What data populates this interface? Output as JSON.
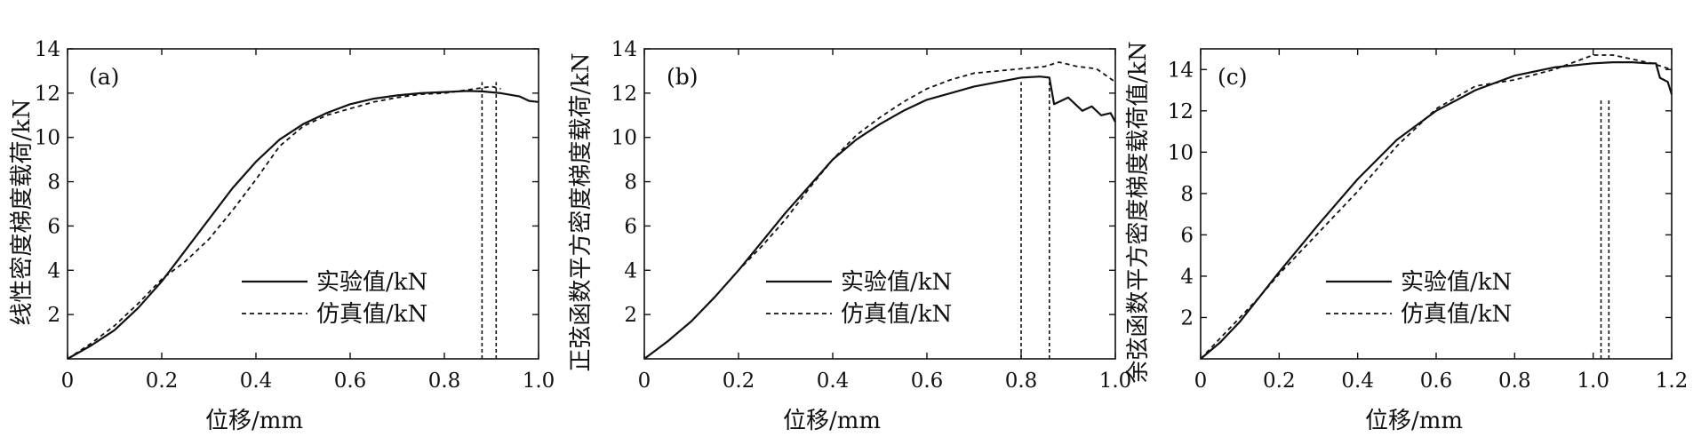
{
  "chart_data": [
    {
      "type": "line",
      "panel_label": "(a)",
      "xlabel": "位移/mm",
      "ylabel": "线性密度梯度载荷/kN",
      "xlim": [
        0,
        1.0
      ],
      "ylim": [
        0,
        14
      ],
      "xticks": [
        0,
        0.2,
        0.4,
        0.6,
        0.8,
        1.0
      ],
      "xtick_labels": [
        "0",
        "0.2",
        "0.4",
        "0.6",
        "0.8",
        "1.0"
      ],
      "yticks": [
        2,
        4,
        6,
        8,
        10,
        12,
        14
      ],
      "ytick_labels": [
        "2",
        "4",
        "6",
        "8",
        "10",
        "12",
        "14"
      ],
      "grid": false,
      "legend_position": "lower-right",
      "series": [
        {
          "name": "实验值/kN",
          "style": "solid",
          "x": [
            0,
            0.05,
            0.1,
            0.15,
            0.2,
            0.25,
            0.3,
            0.35,
            0.4,
            0.45,
            0.5,
            0.55,
            0.6,
            0.65,
            0.7,
            0.75,
            0.8,
            0.85,
            0.88,
            0.92,
            0.96,
            0.98,
            1.0
          ],
          "y": [
            0,
            0.6,
            1.3,
            2.3,
            3.5,
            4.9,
            6.3,
            7.7,
            8.9,
            9.9,
            10.6,
            11.1,
            11.5,
            11.75,
            11.9,
            12.0,
            12.05,
            12.1,
            12.08,
            12.0,
            11.85,
            11.65,
            11.6
          ]
        },
        {
          "name": "仿真值/kN",
          "style": "dashed",
          "x": [
            0,
            0.05,
            0.1,
            0.15,
            0.2,
            0.25,
            0.3,
            0.35,
            0.4,
            0.45,
            0.5,
            0.55,
            0.6,
            0.65,
            0.7,
            0.75,
            0.8,
            0.85,
            0.9,
            0.92
          ],
          "y": [
            0,
            0.7,
            1.5,
            2.5,
            3.6,
            4.4,
            5.4,
            6.7,
            8.1,
            9.6,
            10.5,
            11.0,
            11.3,
            11.6,
            11.8,
            11.95,
            12.0,
            12.15,
            12.3,
            12.2
          ]
        }
      ],
      "vertical_markers": [
        0.88,
        0.91
      ]
    },
    {
      "type": "line",
      "panel_label": "(b)",
      "xlabel": "位移/mm",
      "ylabel": "正弦函数平方密度梯度载荷/kN",
      "xlim": [
        0,
        1.0
      ],
      "ylim": [
        0,
        14
      ],
      "xticks": [
        0,
        0.2,
        0.4,
        0.6,
        0.8,
        1.0
      ],
      "xtick_labels": [
        "0",
        "0.2",
        "0.4",
        "0.6",
        "0.8",
        "1.0"
      ],
      "yticks": [
        2,
        4,
        6,
        8,
        10,
        12,
        14
      ],
      "ytick_labels": [
        "2",
        "4",
        "6",
        "8",
        "10",
        "12",
        "14"
      ],
      "grid": false,
      "legend_position": "lower-right",
      "series": [
        {
          "name": "实验值/kN",
          "style": "solid",
          "x": [
            0,
            0.05,
            0.1,
            0.15,
            0.2,
            0.25,
            0.3,
            0.35,
            0.4,
            0.45,
            0.5,
            0.55,
            0.6,
            0.65,
            0.7,
            0.75,
            0.8,
            0.84,
            0.86,
            0.87,
            0.9,
            0.93,
            0.95,
            0.97,
            0.99,
            1.0
          ],
          "y": [
            0,
            0.8,
            1.7,
            2.8,
            4.0,
            5.3,
            6.6,
            7.8,
            9.0,
            9.9,
            10.6,
            11.2,
            11.7,
            12.0,
            12.3,
            12.5,
            12.7,
            12.75,
            12.7,
            11.5,
            11.8,
            11.2,
            11.4,
            11.0,
            11.1,
            10.7
          ]
        },
        {
          "name": "仿真值/kN",
          "style": "dashed",
          "x": [
            0,
            0.05,
            0.1,
            0.15,
            0.2,
            0.25,
            0.3,
            0.35,
            0.4,
            0.45,
            0.5,
            0.55,
            0.6,
            0.65,
            0.7,
            0.75,
            0.8,
            0.85,
            0.88,
            0.92,
            0.96,
            1.0
          ],
          "y": [
            0,
            0.8,
            1.7,
            2.8,
            4.0,
            5.1,
            6.3,
            7.7,
            9.0,
            10.1,
            10.9,
            11.6,
            12.2,
            12.6,
            12.9,
            13.0,
            13.1,
            13.2,
            13.4,
            13.2,
            13.1,
            12.5
          ]
        }
      ],
      "vertical_markers": [
        0.8,
        0.86
      ]
    },
    {
      "type": "line",
      "panel_label": "(c)",
      "xlabel": "位移/mm",
      "ylabel": "余弦函数平方密度梯度载荷值/kN",
      "xlim": [
        0,
        1.2
      ],
      "ylim": [
        0,
        15
      ],
      "xticks": [
        0,
        0.2,
        0.4,
        0.6,
        0.8,
        1.0,
        1.2
      ],
      "xtick_labels": [
        "0",
        "0.2",
        "0.4",
        "0.6",
        "0.8",
        "1.0",
        "1.2"
      ],
      "yticks": [
        2,
        4,
        6,
        8,
        10,
        12,
        14
      ],
      "ytick_labels": [
        "2",
        "4",
        "6",
        "8",
        "10",
        "12",
        "14"
      ],
      "grid": false,
      "legend_position": "lower-right",
      "series": [
        {
          "name": "实验值/kN",
          "style": "solid",
          "x": [
            0,
            0.05,
            0.1,
            0.15,
            0.2,
            0.3,
            0.4,
            0.5,
            0.6,
            0.7,
            0.8,
            0.9,
            1.0,
            1.05,
            1.1,
            1.14,
            1.16,
            1.17,
            1.19,
            1.2
          ],
          "y": [
            0,
            0.8,
            1.8,
            3.0,
            4.2,
            6.5,
            8.7,
            10.6,
            12.0,
            13.0,
            13.7,
            14.1,
            14.3,
            14.35,
            14.35,
            14.3,
            14.3,
            13.6,
            13.4,
            12.8
          ]
        },
        {
          "name": "仿真值/kN",
          "style": "dashed",
          "x": [
            0,
            0.05,
            0.1,
            0.15,
            0.2,
            0.3,
            0.4,
            0.5,
            0.6,
            0.7,
            0.8,
            0.9,
            1.0,
            1.05,
            1.1,
            1.15,
            1.2
          ],
          "y": [
            0,
            1.0,
            2.0,
            3.0,
            4.1,
            6.1,
            8.1,
            10.3,
            12.1,
            13.2,
            13.5,
            14.0,
            14.7,
            14.7,
            14.5,
            14.3,
            14.0
          ]
        }
      ],
      "vertical_markers": [
        1.02,
        1.04
      ]
    }
  ]
}
